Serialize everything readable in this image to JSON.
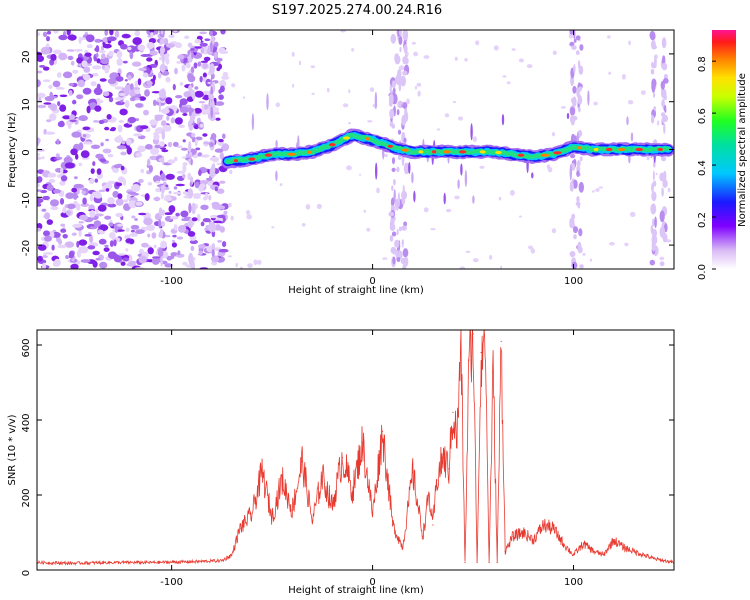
{
  "title": "S197.2025.274.00.24.R16",
  "chart_data": [
    {
      "type": "heatmap",
      "name": "spectrogram",
      "xlabel": "Height of straight line (km)",
      "ylabel": "Frequency (Hz)",
      "xlim": [
        -167,
        150
      ],
      "ylim": [
        -25,
        25
      ],
      "xticks": [
        -100,
        0,
        100
      ],
      "yticks": [
        -20,
        -10,
        0,
        10,
        20
      ],
      "colorbar": {
        "label": "Normalized spectral amplitude",
        "range": [
          0,
          0.92
        ],
        "ticks": [
          0,
          0.2,
          0.4,
          0.6,
          0.8
        ]
      },
      "noise_region_x": [
        -167,
        -73
      ],
      "ridge": {
        "x": [
          -72,
          -60,
          -50,
          -40,
          -30,
          -20,
          -10,
          0,
          10,
          20,
          40,
          60,
          80,
          90,
          100,
          110,
          120,
          130,
          140,
          148
        ],
        "frequency": [
          -2.5,
          -2,
          -1,
          -1,
          -0.5,
          1,
          3,
          2,
          0.5,
          -0.5,
          -0.5,
          -0.5,
          -1.5,
          -1,
          0.5,
          0,
          0,
          0,
          0,
          0
        ]
      }
    },
    {
      "type": "line",
      "name": "snr",
      "xlabel": "Height of straight line (km)",
      "ylabel": "SNR (10 * v/v)",
      "xlim": [
        -167,
        150
      ],
      "ylim": [
        0,
        640
      ],
      "xticks": [
        -100,
        0,
        100
      ],
      "yticks": [
        0,
        200,
        400,
        600
      ],
      "series": [
        {
          "name": "SNR",
          "color": "#e8392f",
          "x": [
            -167,
            -150,
            -130,
            -110,
            -90,
            -75,
            -70,
            -66,
            -60,
            -55,
            -50,
            -45,
            -40,
            -35,
            -30,
            -25,
            -20,
            -15,
            -10,
            -5,
            0,
            5,
            10,
            15,
            20,
            25,
            28,
            30,
            32,
            35,
            38,
            40,
            42,
            44,
            46,
            48,
            50,
            52,
            54,
            56,
            58,
            60,
            62,
            64,
            66,
            68,
            70,
            75,
            80,
            85,
            90,
            95,
            100,
            105,
            110,
            115,
            120,
            125,
            130,
            135,
            140,
            145,
            150
          ],
          "values": [
            20,
            18,
            20,
            20,
            22,
            25,
            40,
            110,
            150,
            260,
            140,
            240,
            160,
            290,
            130,
            250,
            170,
            300,
            210,
            340,
            150,
            370,
            120,
            60,
            260,
            90,
            200,
            120,
            240,
            300,
            270,
            420,
            350,
            600,
            20,
            560,
            630,
            20,
            580,
            640,
            20,
            530,
            20,
            610,
            50,
            70,
            90,
            100,
            80,
            120,
            110,
            70,
            40,
            70,
            50,
            40,
            80,
            60,
            50,
            40,
            30,
            25,
            20
          ]
        }
      ]
    }
  ]
}
